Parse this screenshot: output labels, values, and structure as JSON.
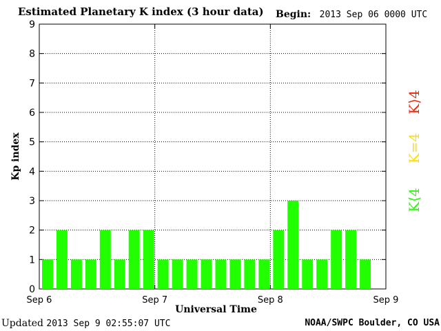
{
  "header": {
    "title": "Estimated Planetary K index (3 hour data)",
    "begin_label": "Begin:",
    "begin_value": "2013 Sep 06 0000 UTC"
  },
  "footer": {
    "updated_label": "Updated",
    "updated_value": "2013 Sep  9 02:55:07 UTC",
    "credit": "NOAA/SWPC Boulder, CO USA"
  },
  "legend": {
    "above": {
      "label": "K⟩4",
      "color": "#ff2200"
    },
    "equal": {
      "label": "K=4",
      "color": "#ffdd00"
    },
    "below": {
      "label": "K⟨4",
      "color": "#22ff00"
    }
  },
  "chart_data": {
    "type": "bar",
    "title": "Estimated Planetary K index (3 hour data)",
    "xlabel": "Universal Time",
    "ylabel": "Kp index",
    "ylim": [
      0,
      9
    ],
    "yticks": [
      0,
      1,
      2,
      3,
      4,
      5,
      6,
      7,
      8,
      9
    ],
    "xticks": [
      "Sep 6",
      "Sep 7",
      "Sep 8",
      "Sep 9"
    ],
    "grid": true,
    "bar_color": "#22ff00",
    "intervals_per_day": 8,
    "values": [
      1,
      2,
      1,
      1,
      2,
      1,
      2,
      2,
      1,
      1,
      1,
      1,
      1,
      1,
      1,
      1,
      2,
      3,
      1,
      1,
      2,
      2,
      1
    ]
  }
}
